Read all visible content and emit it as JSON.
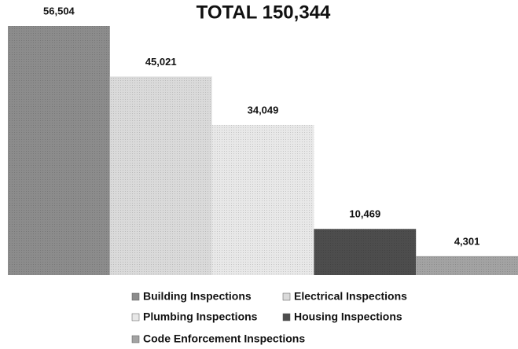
{
  "chart_data": {
    "type": "bar",
    "title": "TOTAL 150,344",
    "series": [
      {
        "name": "Building Inspections",
        "color": "#8c8c8c",
        "values": [
          56504
        ],
        "value_labels": [
          "56,504"
        ]
      },
      {
        "name": "Electrical Inspections",
        "color": "#dadada",
        "values": [
          45021
        ],
        "value_labels": [
          "45,021"
        ]
      },
      {
        "name": "Plumbing Inspections",
        "color": "#e8e8e8",
        "values": [
          34049
        ],
        "value_labels": [
          "34,049"
        ]
      },
      {
        "name": "Housing Inspections",
        "color": "#4d4d4d",
        "values": [
          10469
        ],
        "value_labels": [
          "10,469"
        ]
      },
      {
        "name": "Code Enforcement Inspections",
        "color": "#a3a3a3",
        "values": [
          4301
        ],
        "value_labels": [
          "4,301"
        ]
      }
    ]
  }
}
